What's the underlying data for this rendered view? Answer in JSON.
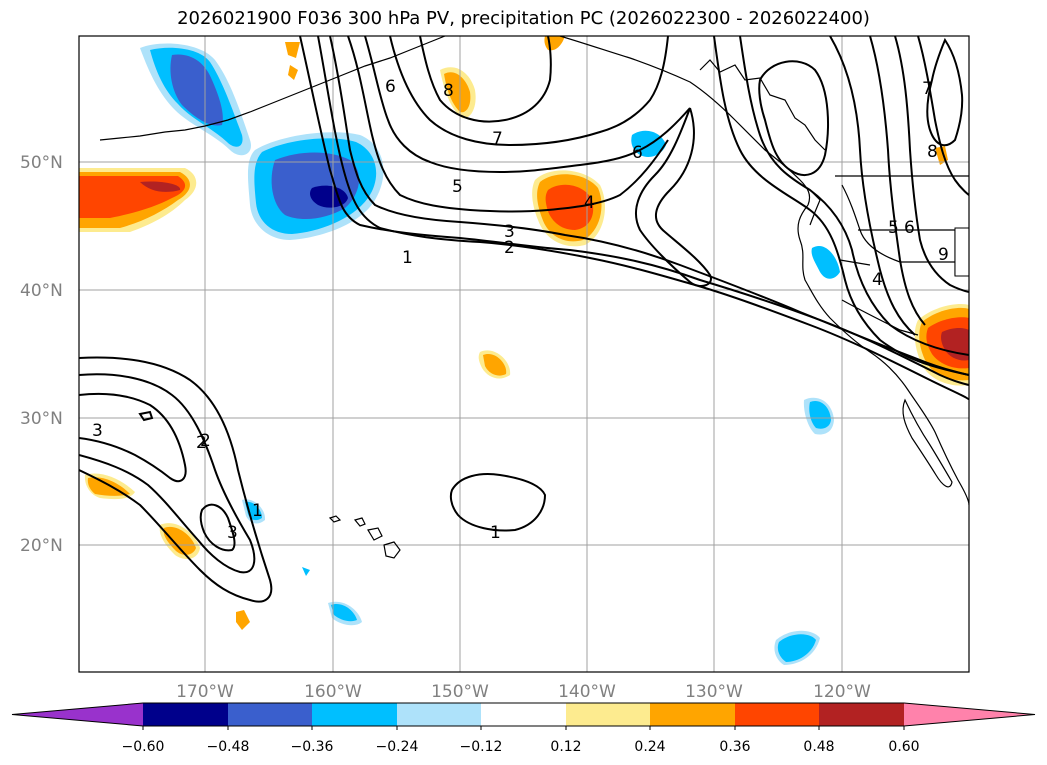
{
  "title": "2026021900 F036 300 hPa PV, precipitation PC (2026022300 - 2026022400)",
  "lat_labels": [
    "50°N",
    "40°N",
    "30°N",
    "20°N"
  ],
  "lon_labels": [
    "170°W",
    "160°W",
    "150°W",
    "140°W",
    "130°W",
    "120°W"
  ],
  "colorbar": {
    "ticks": [
      "−0.60",
      "−0.48",
      "−0.36",
      "−0.24",
      "−0.12",
      "0.12",
      "0.24",
      "0.36",
      "0.48",
      "0.60"
    ],
    "colors": [
      "#9932cc",
      "#00008b",
      "#3a5fcd",
      "#00bfff",
      "#aee2fa",
      "#ffffff",
      "#fdeb8f",
      "#ffa500",
      "#ff4500",
      "#b22222",
      "#ff82ab"
    ]
  },
  "contour_labels": [
    "1",
    "2",
    "3",
    "4",
    "5",
    "6",
    "7",
    "8",
    "1",
    "2",
    "3",
    "1",
    "2",
    "3",
    "4",
    "5",
    "6",
    "7",
    "8",
    "9"
  ]
}
